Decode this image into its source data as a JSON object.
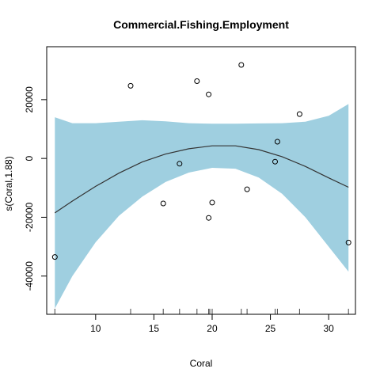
{
  "chart_data": {
    "type": "line",
    "title": "Commercial.Fishing.Employment",
    "xlabel": "Coral",
    "ylabel": "s(Coral,1.88)",
    "xlim": [
      5.8,
      32.3
    ],
    "ylim": [
      -53000,
      38000
    ],
    "x_ticks": [
      10,
      15,
      20,
      25,
      30
    ],
    "y_ticks": [
      -40000,
      -20000,
      0,
      20000
    ],
    "grid": false,
    "colors": {
      "band": "#9fcfe0",
      "line": "#333333",
      "points": "#000000"
    },
    "smooth": {
      "x": [
        6.5,
        8,
        10,
        12,
        14,
        16,
        18,
        20,
        22,
        24,
        26,
        28,
        30,
        31.7
      ],
      "fit": [
        -18500,
        -14500,
        -9500,
        -5000,
        -1200,
        1500,
        3300,
        4300,
        4300,
        3000,
        600,
        -2700,
        -6600,
        -9800
      ],
      "lower": [
        -51000,
        -40000,
        -28500,
        -19500,
        -13000,
        -8000,
        -4800,
        -3200,
        -3500,
        -6500,
        -12000,
        -20000,
        -30000,
        -38500
      ],
      "upper": [
        14000,
        12000,
        12000,
        12500,
        13000,
        12600,
        12000,
        11800,
        11800,
        11900,
        12000,
        12500,
        14500,
        18500
      ]
    },
    "points": [
      {
        "x": 6.5,
        "y": -33500
      },
      {
        "x": 13,
        "y": 24700
      },
      {
        "x": 15.8,
        "y": -15300
      },
      {
        "x": 17.2,
        "y": -1800
      },
      {
        "x": 18.7,
        "y": 26300
      },
      {
        "x": 19.7,
        "y": 21800
      },
      {
        "x": 19.7,
        "y": -20200
      },
      {
        "x": 20,
        "y": -15000
      },
      {
        "x": 22.5,
        "y": 31800
      },
      {
        "x": 23,
        "y": -10500
      },
      {
        "x": 25.4,
        "y": -1100
      },
      {
        "x": 25.6,
        "y": 5700
      },
      {
        "x": 27.5,
        "y": 15100
      },
      {
        "x": 31.7,
        "y": -28600
      }
    ],
    "rug": [
      6.5,
      13,
      15.8,
      17.2,
      18.7,
      19.7,
      19.8,
      20,
      22.5,
      23,
      25.4,
      25.6,
      27.5,
      31.7
    ]
  }
}
